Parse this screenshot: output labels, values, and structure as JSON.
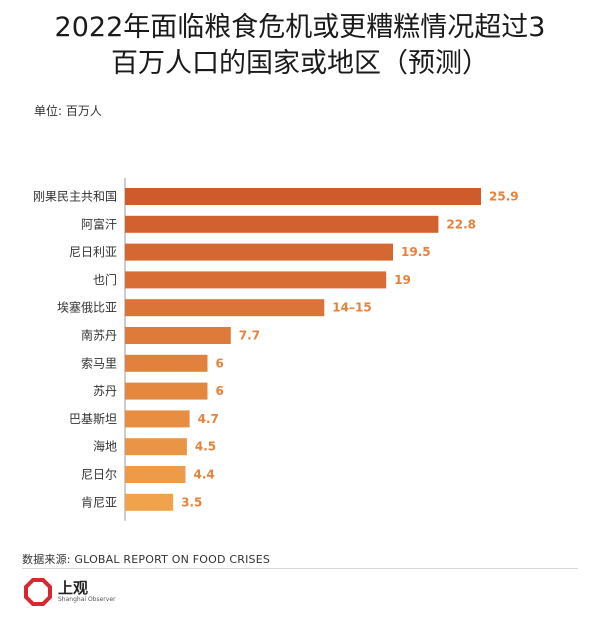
{
  "title_line1": "2022年面临粮食危机或更糟糕情况超过3",
  "title_line2": "百万人口的国家或地区（预测）",
  "unit_label": "单位: 百万人",
  "source": "数据来源: GLOBAL REPORT ON FOOD CRISES",
  "logo": {
    "name": "上观",
    "subtitle": "Shanghai Observer",
    "icon": "octagon-logo-icon",
    "color": "#d7282f"
  },
  "chart_data": {
    "type": "bar",
    "orientation": "horizontal",
    "title": "2022年面临粮食危机或更糟糕情况超过3百万人口的国家或地区（预测）",
    "unit": "百万人",
    "categories": [
      "刚果民主共和国",
      "阿富汗",
      "尼日利亚",
      "也门",
      "埃塞俄比亚",
      "南苏丹",
      "索马里",
      "苏丹",
      "巴基斯坦",
      "海地",
      "尼日尔",
      "肯尼亚"
    ],
    "values": [
      25.9,
      22.8,
      19.5,
      19,
      14.5,
      7.7,
      6,
      6,
      4.7,
      4.5,
      4.4,
      3.5
    ],
    "labels": [
      "25.9",
      "22.8",
      "19.5",
      "19",
      "14–15",
      "7.7",
      "6",
      "6",
      "4.7",
      "4.5",
      "4.4",
      "3.5"
    ],
    "xlim": [
      0,
      27.5
    ],
    "grid": false,
    "bar_color_start": "#cf5a2c",
    "bar_color_end": "#f0a24c",
    "label_color": "#e8823a"
  }
}
